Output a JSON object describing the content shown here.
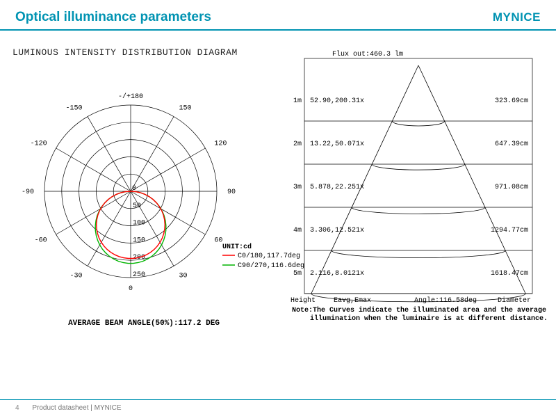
{
  "header": {
    "title": "Optical illuminance parameters",
    "brand": "MYNICE"
  },
  "polar": {
    "title": "LUMINOUS INTENSITY DISTRIBUTION DIAGRAM",
    "top_label": "-/+180",
    "angle_labels": [
      "-150",
      "150",
      "-120",
      "120",
      "-90",
      "90",
      "-60",
      "60",
      "-30",
      "30",
      "0"
    ],
    "ring_values": [
      50,
      100,
      150,
      200,
      250
    ],
    "unit_label": "UNIT:cd",
    "legend": {
      "c0": "C0/180,117.7deg",
      "c90": "C90/270,116.6deg"
    },
    "bottom_label": "AVERAGE BEAM ANGLE(50%):117.2 DEG",
    "colors": {
      "grid": "#000000",
      "c0": "#ff0000",
      "c90": "#00b400"
    },
    "lobe_rings": 5,
    "lobe_radius_max_ratio": 0.85,
    "lobe_half_angle_deg": 58
  },
  "cone": {
    "flux_label": "Flux out:460.3 lm",
    "angle_label": "Angle:116.58deg",
    "col_height": "Height",
    "col_eavg": "Eavg,Emax",
    "col_diam": "Diameter",
    "note": "Note:The Curves indicate the illuminated area and the average illumination when the luminaire is at different distance.",
    "rows": [
      {
        "h": "1m",
        "e": "52.90,200.31x",
        "d": "323.69cm"
      },
      {
        "h": "2m",
        "e": "13.22,50.071x",
        "d": "647.39cm"
      },
      {
        "h": "3m",
        "e": "5.878,22.251x",
        "d": "971.08cm"
      },
      {
        "h": "4m",
        "e": "3.306,12.521x",
        "d": "1294.77cm"
      },
      {
        "h": "5m",
        "e": "2.116,8.0121x",
        "d": "1618.47cm"
      }
    ],
    "colors": {
      "line": "#000000"
    }
  },
  "footer": {
    "page": "4",
    "text": "Product datasheet | MYNICE"
  }
}
